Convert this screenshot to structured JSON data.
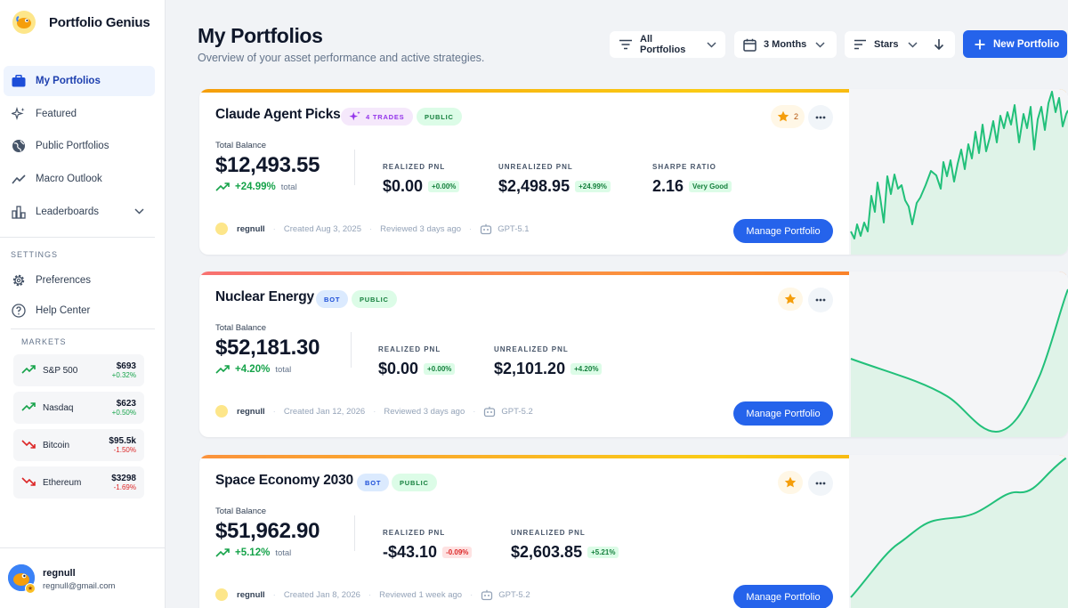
{
  "app": {
    "name": "Portfolio Genius"
  },
  "sidebar": {
    "items": [
      {
        "label": "My Portfolios",
        "icon": "briefcase-icon",
        "active": true
      },
      {
        "label": "Featured",
        "icon": "sparkles-icon"
      },
      {
        "label": "Public Portfolios",
        "icon": "globe-icon"
      },
      {
        "label": "Macro Outlook",
        "icon": "trend-line-icon"
      },
      {
        "label": "Leaderboards",
        "icon": "bar-chart-icon",
        "expandable": true
      }
    ],
    "settings_heading": "SETTINGS",
    "settings": [
      {
        "label": "Preferences",
        "icon": "gear-icon"
      },
      {
        "label": "Help Center",
        "icon": "help-circle-icon"
      }
    ],
    "markets_heading": "MARKETS",
    "markets": [
      {
        "name": "S&P 500",
        "price": "$693",
        "change": "+0.32%",
        "direction": "up"
      },
      {
        "name": "Nasdaq",
        "price": "$623",
        "change": "+0.50%",
        "direction": "up"
      },
      {
        "name": "Bitcoin",
        "price": "$95.5k",
        "change": "-1.50%",
        "direction": "down"
      },
      {
        "name": "Ethereum",
        "price": "$3298",
        "change": "-1.69%",
        "direction": "down"
      }
    ],
    "user": {
      "name": "regnull",
      "email": "regnull@gmail.com"
    }
  },
  "header": {
    "title": "My Portfolios",
    "subtitle": "Overview of your asset performance and active strategies.",
    "filter_label": "All Portfolios",
    "period_label": "3 Months",
    "sort_label": "Stars",
    "new_button": "New Portfolio"
  },
  "colors": {
    "accent": "#2563eb",
    "positive": "#16a34a",
    "negative": "#dc2626",
    "line": "#22c07a"
  },
  "portfolios": [
    {
      "title": "Claude Agent Picks",
      "tags": [
        "4 TRADES",
        "PUBLIC"
      ],
      "stars": "2",
      "balance_label": "Total Balance",
      "balance": "$12,493.55",
      "change": "+24.99%",
      "change_suffix": "total",
      "metrics": [
        {
          "label": "REALIZED PNL",
          "value": "$0.00",
          "pill": "+0.00%",
          "tone": "pos"
        },
        {
          "label": "UNREALIZED PNL",
          "value": "$2,498.95",
          "pill": "+24.99%",
          "tone": "pos"
        },
        {
          "label": "SHARPE RATIO",
          "value": "2.16",
          "pill": "Very Good",
          "tone": "pos"
        }
      ],
      "owner": "regnull",
      "created": "Created Aug 3, 2025",
      "reviewed": "Reviewed 3 days ago",
      "model": "GPT-5.1",
      "action": "Manage Portfolio"
    },
    {
      "title": "Nuclear Energy",
      "tags": [
        "BOT",
        "PUBLIC"
      ],
      "stars": "",
      "balance_label": "Total Balance",
      "balance": "$52,181.30",
      "change": "+4.20%",
      "change_suffix": "total",
      "metrics": [
        {
          "label": "REALIZED PNL",
          "value": "$0.00",
          "pill": "+0.00%",
          "tone": "pos"
        },
        {
          "label": "UNREALIZED PNL",
          "value": "$2,101.20",
          "pill": "+4.20%",
          "tone": "pos"
        }
      ],
      "owner": "regnull",
      "created": "Created Jan 12, 2026",
      "reviewed": "Reviewed 3 days ago",
      "model": "GPT-5.2",
      "action": "Manage Portfolio"
    },
    {
      "title": "Space Economy 2030",
      "tags": [
        "BOT",
        "PUBLIC"
      ],
      "stars": "",
      "balance_label": "Total Balance",
      "balance": "$51,962.90",
      "change": "+5.12%",
      "change_suffix": "total",
      "metrics": [
        {
          "label": "REALIZED PNL",
          "value": "-$43.10",
          "pill": "-0.09%",
          "tone": "neg"
        },
        {
          "label": "UNREALIZED PNL",
          "value": "$2,603.85",
          "pill": "+5.21%",
          "tone": "pos"
        }
      ],
      "owner": "regnull",
      "created": "Created Jan 8, 2026",
      "reviewed": "Reviewed 1 week ago",
      "model": "GPT-5.2",
      "action": "Manage Portfolio"
    }
  ]
}
